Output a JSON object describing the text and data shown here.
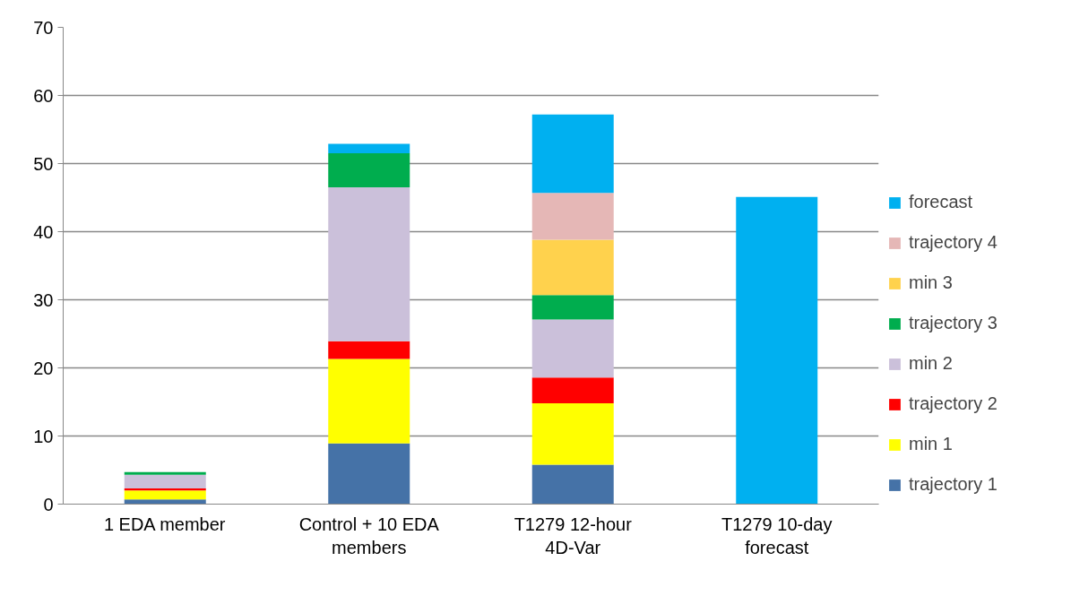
{
  "chart_data": {
    "type": "bar",
    "stacked": true,
    "categories": [
      "1 EDA member",
      "Control + 10 EDA members",
      "T1279 12-hour 4D-Var",
      "T1279 10-day forecast"
    ],
    "series": [
      {
        "name": "trajectory 1",
        "color": "#4572a7",
        "values": [
          0.7,
          8.9,
          5.8,
          null
        ]
      },
      {
        "name": "min 1",
        "color": "#ffff00",
        "values": [
          1.3,
          12.4,
          9.0,
          null
        ]
      },
      {
        "name": "trajectory 2",
        "color": "#ff0000",
        "values": [
          0.3,
          2.6,
          3.8,
          null
        ]
      },
      {
        "name": "min 2",
        "color": "#cbc0da",
        "values": [
          2.0,
          22.6,
          8.5,
          null
        ]
      },
      {
        "name": "trajectory 3",
        "color": "#00ad4e",
        "values": [
          0.4,
          5.0,
          3.6,
          null
        ]
      },
      {
        "name": "min 3",
        "color": "#ffd24d",
        "values": [
          null,
          null,
          8.1,
          null
        ]
      },
      {
        "name": "trajectory 4",
        "color": "#e5b7b6",
        "values": [
          null,
          null,
          6.9,
          null
        ]
      },
      {
        "name": "forecast",
        "color": "#00b0f0",
        "values": [
          null,
          1.4,
          11.5,
          45.1
        ]
      }
    ],
    "ylim": [
      0,
      70
    ],
    "yticks": [
      0,
      10,
      20,
      30,
      40,
      50,
      60,
      70
    ],
    "grid": "y",
    "legend": "right"
  }
}
